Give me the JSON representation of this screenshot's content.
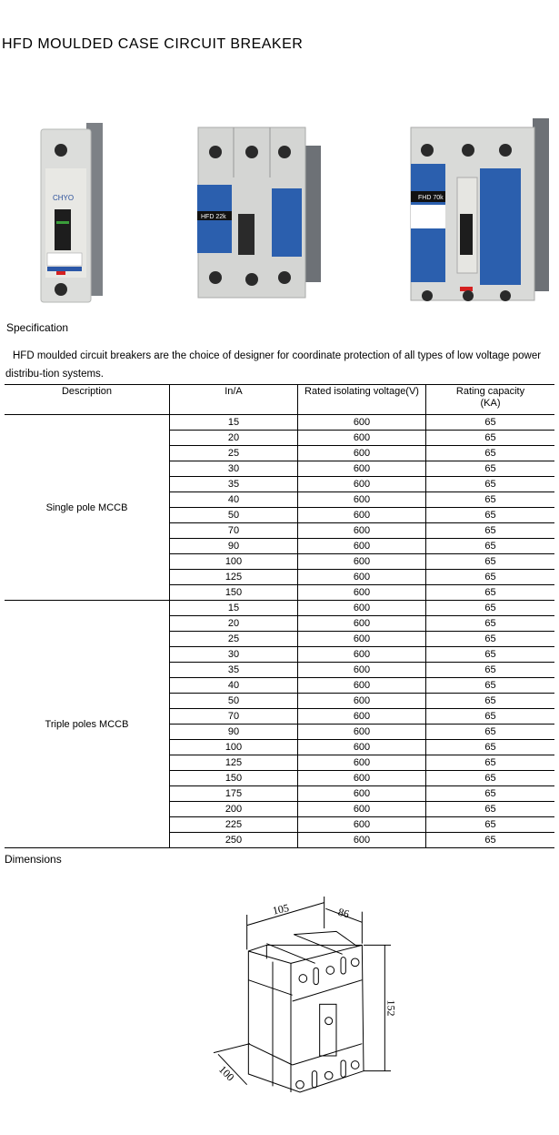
{
  "title": "HFD MOULDED CASE CIRCUIT BREAKER",
  "products": [
    {
      "label": "Single pole breaker photo",
      "logo": "CHYO"
    },
    {
      "label": "Triple pole breaker photo",
      "logo": "HFD 22k"
    },
    {
      "label": "Triple pole breaker photo",
      "logo": "FHD 70k"
    }
  ],
  "specification": {
    "heading": "Specification",
    "intro": "HFD moulded circuit breakers are the choice of designer for coordinate protection of all types of low voltage power distribu-tion systems.",
    "columns": [
      "Description",
      "In/A",
      "Rated isolating voltage(V)",
      "Rating capacity\n(KA)"
    ],
    "groups": [
      {
        "description": "Single pole MCCB",
        "rows": [
          [
            "15",
            "600",
            "65"
          ],
          [
            "20",
            "600",
            "65"
          ],
          [
            "25",
            "600",
            "65"
          ],
          [
            "30",
            "600",
            "65"
          ],
          [
            "35",
            "600",
            "65"
          ],
          [
            "40",
            "600",
            "65"
          ],
          [
            "50",
            "600",
            "65"
          ],
          [
            "70",
            "600",
            "65"
          ],
          [
            "90",
            "600",
            "65"
          ],
          [
            "100",
            "600",
            "65"
          ],
          [
            "125",
            "600",
            "65"
          ],
          [
            "150",
            "600",
            "65"
          ]
        ]
      },
      {
        "description": "Triple poles MCCB",
        "rows": [
          [
            "15",
            "600",
            "65"
          ],
          [
            "20",
            "600",
            "65"
          ],
          [
            "25",
            "600",
            "65"
          ],
          [
            "30",
            "600",
            "65"
          ],
          [
            "35",
            "600",
            "65"
          ],
          [
            "40",
            "600",
            "65"
          ],
          [
            "50",
            "600",
            "65"
          ],
          [
            "70",
            "600",
            "65"
          ],
          [
            "90",
            "600",
            "65"
          ],
          [
            "100",
            "600",
            "65"
          ],
          [
            "125",
            "600",
            "65"
          ],
          [
            "150",
            "600",
            "65"
          ],
          [
            "175",
            "600",
            "65"
          ],
          [
            "200",
            "600",
            "65"
          ],
          [
            "225",
            "600",
            "65"
          ],
          [
            "250",
            "600",
            "65"
          ]
        ]
      }
    ]
  },
  "dimensions": {
    "heading": "Dimensions",
    "width": "105",
    "depth": "86",
    "height": "152",
    "base": "100"
  }
}
